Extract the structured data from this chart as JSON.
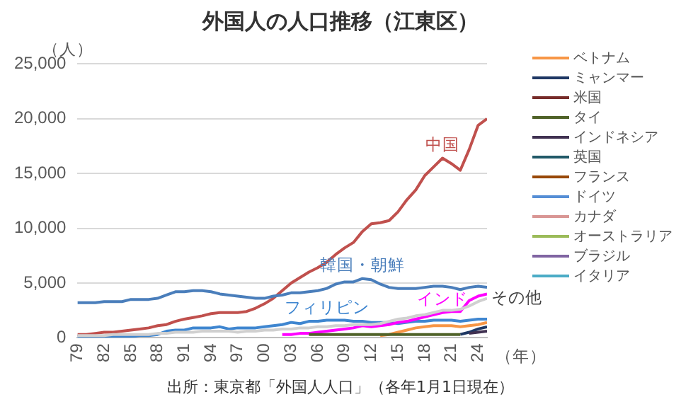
{
  "chart_data": {
    "type": "line",
    "title": "外国人の人口推移（江東区）",
    "ylabel": "（人）",
    "xlabel": "（年）",
    "x": [
      1979,
      1980,
      1981,
      1982,
      1983,
      1984,
      1985,
      1986,
      1987,
      1988,
      1989,
      1990,
      1991,
      1992,
      1993,
      1994,
      1995,
      1996,
      1997,
      1998,
      1999,
      2000,
      2001,
      2002,
      2003,
      2004,
      2005,
      2006,
      2007,
      2008,
      2009,
      2010,
      2011,
      2012,
      2013,
      2014,
      2015,
      2016,
      2017,
      2018,
      2019,
      2020,
      2021,
      2022,
      2023,
      2024,
      2025
    ],
    "xlim": [
      1979,
      2025
    ],
    "xticks": [
      {
        "value": 1979,
        "label": "79"
      },
      {
        "value": 1982,
        "label": "82"
      },
      {
        "value": 1985,
        "label": "85"
      },
      {
        "value": 1988,
        "label": "88"
      },
      {
        "value": 1991,
        "label": "91"
      },
      {
        "value": 1994,
        "label": "94"
      },
      {
        "value": 1997,
        "label": "97"
      },
      {
        "value": 2000,
        "label": "00"
      },
      {
        "value": 2003,
        "label": "03"
      },
      {
        "value": 2006,
        "label": "06"
      },
      {
        "value": 2009,
        "label": "09"
      },
      {
        "value": 2012,
        "label": "12"
      },
      {
        "value": 2015,
        "label": "15"
      },
      {
        "value": 2018,
        "label": "18"
      },
      {
        "value": 2021,
        "label": "21"
      },
      {
        "value": 2024,
        "label": "24"
      }
    ],
    "ylim": [
      0,
      25000
    ],
    "yticks": [
      0,
      {
        "value": 5000,
        "label": "5,000"
      },
      {
        "value": 10000,
        "label": "10,000"
      },
      {
        "value": 15000,
        "label": "15,000"
      },
      {
        "value": 20000,
        "label": "20,000"
      },
      {
        "value": 25000,
        "label": "25,000"
      }
    ],
    "grid": "y",
    "legend": "right",
    "marker": "none",
    "line_style": "solid",
    "series": [
      {
        "color": "#c0504d",
        "values": [
          300,
          300,
          400,
          500,
          500,
          600,
          700,
          800,
          900,
          1100,
          1200,
          1500,
          1700,
          1850,
          2000,
          2200,
          2300,
          2300,
          2300,
          2400,
          2700,
          3100,
          3600,
          4300,
          5000,
          5500,
          6000,
          6400,
          6900,
          7600,
          8200,
          8700,
          9700,
          10400,
          10500,
          10700,
          11500,
          12600,
          13500,
          14800,
          15600,
          16400,
          15900,
          15300,
          17200,
          19400,
          20000
        ]
      },
      {
        "color": "#4a7ebb",
        "values": [
          3200,
          3200,
          3200,
          3300,
          3300,
          3300,
          3500,
          3500,
          3500,
          3600,
          3900,
          4200,
          4200,
          4300,
          4300,
          4200,
          4000,
          3900,
          3800,
          3700,
          3600,
          3600,
          3800,
          3900,
          4100,
          4100,
          4200,
          4300,
          4500,
          4900,
          5100,
          5100,
          5400,
          5300,
          4900,
          4600,
          4500,
          4500,
          4500,
          4600,
          4700,
          4700,
          4600,
          4400,
          4600,
          4700,
          4600
        ]
      },
      {
        "color": "#3f86d0",
        "values": [
          100,
          100,
          100,
          100,
          100,
          100,
          100,
          200,
          200,
          300,
          600,
          700,
          700,
          900,
          900,
          900,
          1000,
          800,
          900,
          900,
          900,
          1000,
          1100,
          1200,
          1400,
          1300,
          1500,
          1500,
          1600,
          1600,
          1600,
          1500,
          1500,
          1400,
          1400,
          1400,
          1300,
          1400,
          1500,
          1500,
          1600,
          1600,
          1600,
          1500,
          1600,
          1700,
          1700
        ]
      },
      {
        "color": "#ff00ff",
        "values": [
          null,
          null,
          null,
          null,
          null,
          null,
          null,
          null,
          null,
          null,
          null,
          null,
          null,
          null,
          null,
          null,
          null,
          null,
          null,
          null,
          null,
          null,
          null,
          300,
          300,
          400,
          400,
          500,
          600,
          700,
          800,
          900,
          1100,
          1000,
          1100,
          1200,
          1400,
          1500,
          1700,
          1900,
          2100,
          2300,
          2400,
          2400,
          3400,
          3800,
          4000
        ]
      },
      {
        "color": "#d0d0d0",
        "values": [
          200,
          200,
          200,
          200,
          300,
          300,
          300,
          300,
          300,
          400,
          400,
          500,
          500,
          500,
          600,
          600,
          600,
          600,
          500,
          600,
          600,
          700,
          700,
          800,
          800,
          900,
          900,
          1000,
          1000,
          1100,
          1100,
          1200,
          1200,
          1200,
          1300,
          1500,
          1700,
          1800,
          2000,
          2100,
          2300,
          2500,
          2500,
          2600,
          2900,
          3300,
          3600
        ]
      },
      {
        "name": "ベトナム",
        "color": "#f79646",
        "values": [
          null,
          null,
          null,
          null,
          null,
          null,
          null,
          null,
          null,
          null,
          null,
          null,
          null,
          null,
          null,
          null,
          null,
          null,
          null,
          null,
          null,
          null,
          null,
          null,
          null,
          null,
          null,
          null,
          null,
          null,
          null,
          null,
          null,
          null,
          200,
          300,
          500,
          700,
          900,
          1000,
          1100,
          1100,
          1100,
          1000,
          1100,
          1200,
          1400
        ]
      },
      {
        "name": "ミャンマー",
        "color": "#1f3864",
        "values": [
          null,
          null,
          null,
          null,
          null,
          null,
          null,
          null,
          null,
          null,
          null,
          null,
          null,
          null,
          null,
          null,
          null,
          null,
          null,
          null,
          null,
          null,
          null,
          null,
          null,
          null,
          null,
          null,
          null,
          null,
          null,
          null,
          null,
          null,
          null,
          null,
          null,
          null,
          null,
          null,
          null,
          null,
          null,
          300,
          500,
          800,
          1000
        ]
      },
      {
        "name": "米国",
        "color": "#772c2a",
        "values": [
          null,
          null,
          null,
          null,
          null,
          null,
          null,
          null,
          null,
          null,
          null,
          null,
          null,
          null,
          null,
          null,
          null,
          null,
          null,
          null,
          null,
          null,
          null,
          null,
          null,
          null,
          null,
          null,
          null,
          null,
          null,
          null,
          null,
          null,
          null,
          null,
          null,
          null,
          null,
          null,
          null,
          null,
          null,
          null,
          null,
          null,
          null
        ]
      },
      {
        "name": "タイ",
        "color": "#4f6228",
        "values": [
          null,
          null,
          null,
          null,
          null,
          null,
          null,
          null,
          null,
          null,
          null,
          null,
          null,
          null,
          null,
          null,
          null,
          null,
          null,
          null,
          null,
          null,
          null,
          null,
          null,
          null,
          300,
          300,
          300,
          300,
          300,
          300,
          300,
          300,
          300,
          300,
          300,
          300,
          300,
          300,
          300,
          300,
          300,
          300,
          null,
          null,
          null
        ]
      },
      {
        "name": "インドネシア",
        "color": "#403151",
        "values": [
          null,
          null,
          null,
          null,
          null,
          null,
          null,
          null,
          null,
          null,
          null,
          null,
          null,
          null,
          null,
          null,
          null,
          null,
          null,
          null,
          null,
          null,
          null,
          null,
          null,
          null,
          null,
          null,
          null,
          null,
          null,
          null,
          null,
          null,
          null,
          null,
          null,
          null,
          null,
          null,
          null,
          null,
          null,
          null,
          400,
          500,
          600
        ]
      },
      {
        "name": "英国",
        "color": "#215968",
        "values": [
          null,
          null,
          null,
          null,
          null,
          null,
          null,
          null,
          null,
          null,
          null,
          null,
          null,
          null,
          null,
          null,
          null,
          null,
          null,
          null,
          null,
          null,
          null,
          null,
          null,
          null,
          null,
          null,
          null,
          null,
          null,
          null,
          null,
          null,
          null,
          null,
          null,
          null,
          null,
          null,
          null,
          null,
          null,
          null,
          null,
          null,
          null
        ]
      },
      {
        "name": "フランス",
        "color": "#984807",
        "values": [
          null,
          null,
          null,
          null,
          null,
          null,
          null,
          null,
          null,
          null,
          null,
          null,
          null,
          null,
          null,
          null,
          null,
          null,
          null,
          null,
          null,
          null,
          null,
          null,
          null,
          null,
          null,
          null,
          null,
          null,
          null,
          null,
          null,
          null,
          null,
          null,
          null,
          null,
          null,
          null,
          null,
          null,
          null,
          null,
          null,
          null,
          null
        ]
      },
      {
        "name": "ドイツ",
        "color": "#558ed5",
        "values": [
          null,
          null,
          null,
          null,
          null,
          null,
          null,
          null,
          null,
          null,
          null,
          null,
          null,
          null,
          null,
          null,
          null,
          null,
          null,
          null,
          null,
          null,
          null,
          null,
          null,
          null,
          null,
          null,
          null,
          null,
          null,
          null,
          null,
          null,
          null,
          null,
          null,
          null,
          null,
          null,
          null,
          null,
          null,
          null,
          null,
          null,
          null
        ]
      },
      {
        "name": "カナダ",
        "color": "#d99694",
        "values": [
          null,
          null,
          null,
          null,
          null,
          null,
          null,
          null,
          null,
          null,
          null,
          null,
          null,
          null,
          null,
          null,
          null,
          null,
          null,
          null,
          null,
          null,
          null,
          null,
          null,
          null,
          null,
          null,
          null,
          null,
          null,
          null,
          null,
          null,
          null,
          null,
          null,
          null,
          null,
          null,
          null,
          null,
          null,
          null,
          null,
          null,
          null
        ]
      },
      {
        "name": "オーストラリア",
        "color": "#9bbb59",
        "values": [
          null,
          null,
          null,
          null,
          null,
          null,
          null,
          null,
          null,
          null,
          null,
          null,
          null,
          null,
          null,
          null,
          null,
          null,
          null,
          null,
          null,
          null,
          null,
          null,
          null,
          null,
          null,
          null,
          null,
          null,
          null,
          null,
          null,
          null,
          null,
          null,
          null,
          null,
          null,
          null,
          null,
          null,
          null,
          null,
          null,
          null,
          null
        ]
      },
      {
        "name": "ブラジル",
        "color": "#8064a2",
        "values": [
          null,
          null,
          null,
          null,
          null,
          null,
          null,
          null,
          null,
          null,
          null,
          null,
          null,
          null,
          null,
          null,
          null,
          null,
          null,
          null,
          null,
          null,
          null,
          null,
          null,
          null,
          null,
          null,
          null,
          null,
          null,
          null,
          null,
          null,
          null,
          null,
          null,
          null,
          null,
          null,
          null,
          null,
          null,
          null,
          null,
          null,
          null
        ]
      },
      {
        "name": "イタリア",
        "color": "#4bacc6",
        "values": [
          null,
          null,
          null,
          null,
          null,
          null,
          null,
          null,
          null,
          null,
          null,
          null,
          null,
          null,
          null,
          null,
          null,
          null,
          null,
          null,
          null,
          null,
          null,
          null,
          null,
          null,
          null,
          null,
          null,
          null,
          null,
          null,
          null,
          null,
          null,
          null,
          null,
          null,
          null,
          null,
          null,
          null,
          null,
          null,
          null,
          null,
          null
        ]
      }
    ],
    "annotations": [
      {
        "text": "中国",
        "x": 2020,
        "y": 16400
      },
      {
        "text": "韓国・朝鮮",
        "x": 2011,
        "y": 5400
      },
      {
        "text": "フィリピン",
        "x": 2007,
        "y": 1550
      },
      {
        "text": "インド",
        "x": 2020,
        "y": 2300
      },
      {
        "text": "その他",
        "x": 2025,
        "y": 3600
      },
      "出所：東京都「外国人人口」（各年1月1日現在）"
    ]
  }
}
